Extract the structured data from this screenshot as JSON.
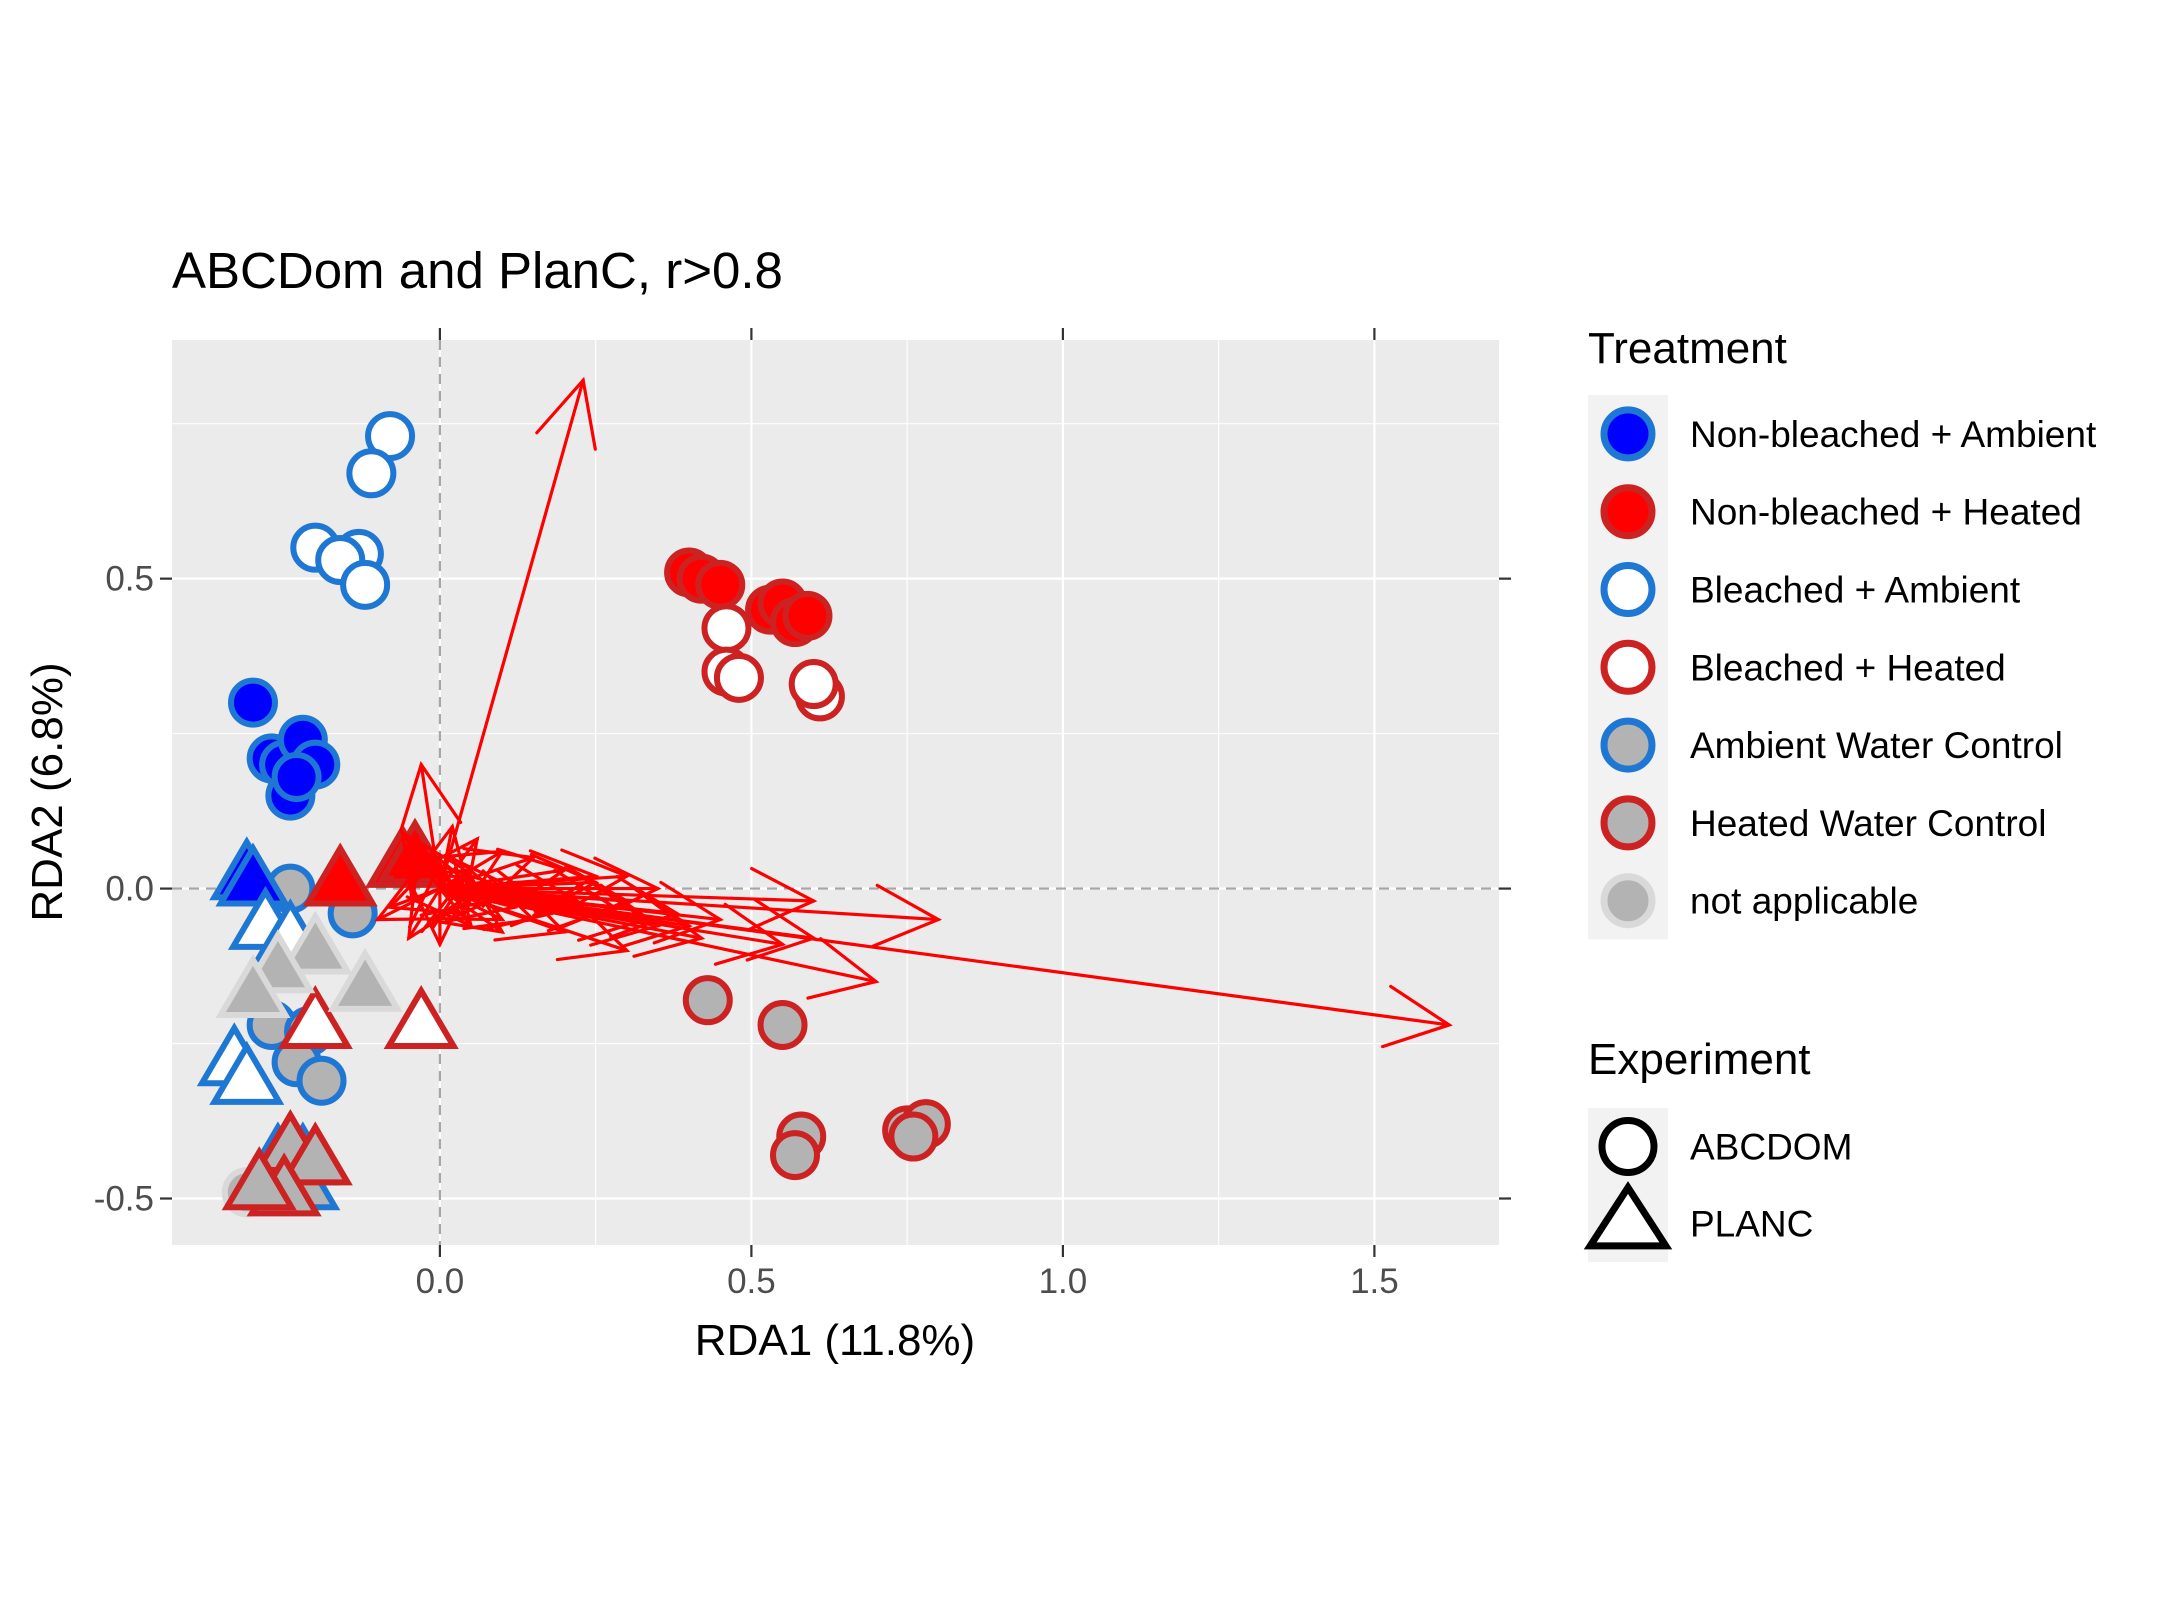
{
  "chart_data": {
    "type": "scatter",
    "title": "ABCDom and PlanC, r>0.8",
    "xlabel": "RDA1 (11.8%)",
    "ylabel": "RDA2 (6.8%)",
    "xlim": [
      -0.43,
      1.7
    ],
    "ylim": [
      -0.575,
      0.885
    ],
    "x_ticks": [
      0.0,
      0.5,
      1.0,
      1.5
    ],
    "x_tick_labels": [
      "0.0",
      "0.5",
      "1.0",
      "1.5"
    ],
    "y_ticks": [
      -0.5,
      0.0,
      0.5
    ],
    "y_tick_labels": [
      "-0.5",
      "0.0",
      "0.5"
    ],
    "grid": true,
    "reference_lines": {
      "x": 0,
      "y": 0,
      "style": "dashed"
    },
    "legend_placement": "right",
    "legends": [
      {
        "title": "Treatment",
        "entries": [
          {
            "label": "Non-bleached + Ambient",
            "fill": "#0000ff",
            "stroke": "#1f77d4"
          },
          {
            "label": "Non-bleached + Heated",
            "fill": "#ff0000",
            "stroke": "#cc2222"
          },
          {
            "label": "Bleached + Ambient",
            "fill": "#ffffff",
            "stroke": "#1f77d4"
          },
          {
            "label": "Bleached + Heated",
            "fill": "#ffffff",
            "stroke": "#cc2222"
          },
          {
            "label": "Ambient Water Control",
            "fill": "#b3b3b3",
            "stroke": "#1f77d4"
          },
          {
            "label": "Heated Water Control",
            "fill": "#b3b3b3",
            "stroke": "#cc2222"
          },
          {
            "label": "not applicable",
            "fill": "#b3b3b3",
            "stroke": "#d9d9d9"
          }
        ]
      },
      {
        "title": "Experiment",
        "entries": [
          {
            "label": "ABCDOM",
            "shape": "circle"
          },
          {
            "label": "PLANC",
            "shape": "triangle"
          }
        ]
      }
    ],
    "series": [
      {
        "name": "Non-bleached + Ambient",
        "shape": "circle",
        "fill": "#0000ff",
        "stroke": "#1f77d4",
        "x": [
          -0.3,
          -0.27,
          -0.25,
          -0.22,
          -0.2,
          -0.24,
          -0.23
        ],
        "y": [
          0.3,
          0.21,
          0.2,
          0.24,
          0.2,
          0.15,
          0.18
        ]
      },
      {
        "name": "Non-bleached + Heated",
        "shape": "circle",
        "fill": "#ff0000",
        "stroke": "#cc2222",
        "x": [
          0.4,
          0.42,
          0.45,
          0.53,
          0.55,
          0.57,
          0.59
        ],
        "y": [
          0.51,
          0.5,
          0.49,
          0.45,
          0.46,
          0.43,
          0.44
        ]
      },
      {
        "name": "Bleached + Ambient",
        "shape": "circle",
        "fill": "#ffffff",
        "stroke": "#1f77d4",
        "x": [
          -0.08,
          -0.11,
          -0.2,
          -0.13,
          -0.16,
          -0.12
        ],
        "y": [
          0.73,
          0.67,
          0.55,
          0.54,
          0.53,
          0.49
        ]
      },
      {
        "name": "Bleached + Heated",
        "shape": "circle",
        "fill": "#ffffff",
        "stroke": "#cc2222",
        "x": [
          0.46,
          0.46,
          0.48,
          0.61,
          0.6
        ],
        "y": [
          0.42,
          0.35,
          0.34,
          0.31,
          0.33
        ]
      },
      {
        "name": "Ambient Water Control",
        "shape": "circle",
        "fill": "#b3b3b3",
        "stroke": "#1f77d4",
        "x": [
          -0.24,
          -0.14,
          -0.27,
          -0.21,
          -0.23,
          -0.19
        ],
        "y": [
          0.0,
          -0.04,
          -0.22,
          -0.23,
          -0.28,
          -0.31
        ]
      },
      {
        "name": "Heated Water Control",
        "shape": "circle",
        "fill": "#b3b3b3",
        "stroke": "#cc2222",
        "x": [
          0.43,
          0.55,
          0.58,
          0.57,
          0.75,
          0.78,
          0.76
        ],
        "y": [
          -0.18,
          -0.22,
          -0.4,
          -0.43,
          -0.39,
          -0.38,
          -0.4
        ]
      },
      {
        "name": "not applicable",
        "shape": "circle",
        "fill": "#b3b3b3",
        "stroke": "#d9d9d9",
        "x": [
          -0.31
        ],
        "y": [
          -0.49
        ]
      },
      {
        "name": "Non-bleached + Ambient",
        "shape": "triangle",
        "fill": "#0000ff",
        "stroke": "#1f77d4",
        "x": [
          -0.31,
          -0.3
        ],
        "y": [
          0.02,
          0.01
        ]
      },
      {
        "name": "Non-bleached + Heated",
        "shape": "triangle",
        "fill": "#ff0000",
        "stroke": "#cc2222",
        "x": [
          -0.16,
          -0.06,
          -0.04
        ],
        "y": [
          0.01,
          0.04,
          0.05
        ]
      },
      {
        "name": "Bleached + Ambient",
        "shape": "triangle",
        "fill": "#ffffff",
        "stroke": "#1f77d4",
        "x": [
          -0.28,
          -0.24,
          -0.33,
          -0.31,
          -0.22
        ],
        "y": [
          -0.06,
          -0.08,
          -0.28,
          -0.31,
          -0.44
        ]
      },
      {
        "name": "Bleached + Heated",
        "shape": "triangle",
        "fill": "#ffffff",
        "stroke": "#cc2222",
        "x": [
          -0.03,
          -0.2
        ],
        "y": [
          -0.22,
          -0.22
        ]
      },
      {
        "name": "Ambient Water Control",
        "shape": "triangle",
        "fill": "#b3b3b3",
        "stroke": "#1f77d4",
        "x": [
          -0.26,
          -0.22
        ],
        "y": [
          -0.44,
          -0.48
        ]
      },
      {
        "name": "Heated Water Control",
        "shape": "triangle",
        "fill": "#b3b3b3",
        "stroke": "#cc2222",
        "x": [
          -0.24,
          -0.2,
          -0.25,
          -0.29
        ],
        "y": [
          -0.42,
          -0.44,
          -0.49,
          -0.48
        ]
      },
      {
        "name": "not applicable",
        "shape": "triangle",
        "fill": "#b3b3b3",
        "stroke": "#d9d9d9",
        "x": [
          -0.2,
          -0.12,
          -0.26,
          -0.3
        ],
        "y": [
          -0.1,
          -0.16,
          -0.13,
          -0.17
        ]
      }
    ],
    "arrows": {
      "color": "#ff0000",
      "x0": [
        0,
        0,
        0,
        0,
        0,
        0,
        0,
        0,
        0,
        0,
        0,
        0,
        0,
        0,
        0,
        0,
        0,
        0,
        0,
        0,
        0,
        0,
        0,
        0,
        0,
        0,
        0,
        0,
        0,
        0,
        0,
        0,
        0,
        0,
        0,
        0,
        0,
        0,
        0,
        0,
        0,
        0,
        0,
        0,
        0
      ],
      "y0": [
        0,
        0,
        0,
        0,
        0,
        0,
        0,
        0,
        0,
        0,
        0,
        0,
        0,
        0,
        0,
        0,
        0,
        0,
        0,
        0,
        0,
        0,
        0,
        0,
        0,
        0,
        0,
        0,
        0,
        0,
        0,
        0,
        0,
        0,
        0,
        0,
        0,
        0,
        0,
        0,
        0,
        0,
        0,
        0,
        0
      ],
      "x1": [
        1.62,
        0.23,
        0.8,
        0.7,
        0.6,
        0.6,
        0.55,
        0.45,
        0.4,
        0.35,
        0.3,
        0.25,
        0.2,
        0.15,
        0.1,
        0.06,
        0.02,
        -0.03,
        -0.06,
        0.0,
        0.05,
        0.08,
        0.12,
        0.18,
        0.22,
        0.28,
        0.33,
        0.38,
        0.42,
        0.2,
        0.25,
        0.3,
        -0.08,
        -0.1,
        -0.05,
        0.0,
        0.05,
        0.1,
        0.15,
        0.3,
        0.35,
        0.1,
        0.12,
        0.08,
        0.04
      ],
      "y1": [
        -0.22,
        0.82,
        -0.05,
        -0.15,
        -0.02,
        -0.08,
        -0.09,
        -0.05,
        -0.06,
        0.0,
        -0.02,
        0.02,
        0.03,
        0.05,
        0.06,
        0.08,
        0.1,
        0.2,
        0.09,
        0.04,
        0.03,
        0.01,
        -0.03,
        -0.04,
        -0.02,
        -0.03,
        -0.05,
        -0.04,
        -0.08,
        -0.07,
        0.01,
        0.02,
        -0.03,
        -0.05,
        -0.08,
        -0.09,
        -0.06,
        -0.07,
        -0.05,
        -0.1,
        -0.06,
        -0.05,
        0.0,
        -0.02,
        0.02
      ]
    }
  }
}
